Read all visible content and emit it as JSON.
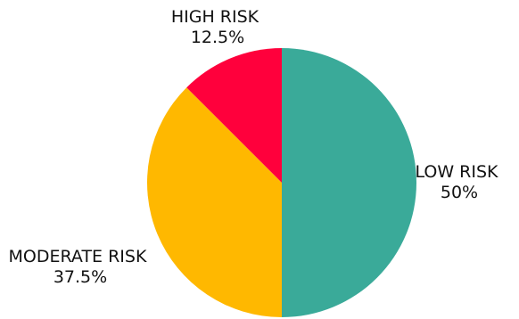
{
  "chart_data": {
    "type": "pie",
    "start_angle": "12 o'clock",
    "direction": "clockwise",
    "slices": [
      {
        "label": "LOW RISK",
        "value": 50,
        "value_label": "50%",
        "color": "#3aaa99"
      },
      {
        "label": "MODERATE RISK",
        "value": 37.5,
        "value_label": "37.5%",
        "color": "#ffb800"
      },
      {
        "label": "HIGH RISK",
        "value": 12.5,
        "value_label": "12.5%",
        "color": "#ff003c"
      }
    ]
  }
}
